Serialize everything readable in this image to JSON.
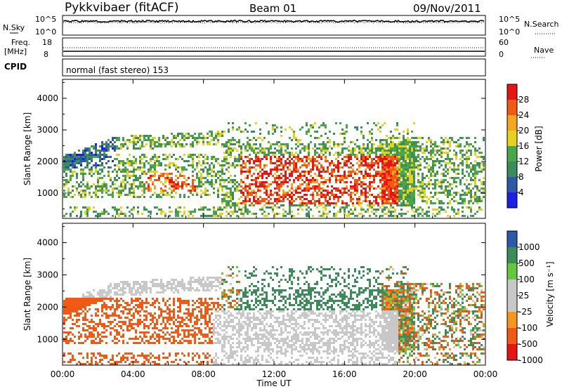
{
  "header": {
    "station": "Pykkvibaer (fitACF)",
    "beam": "Beam 01",
    "date": "09/Nov/2011"
  },
  "nsky": {
    "left_label": "N.Sky",
    "left_ticks": [
      "10^5",
      "10^0"
    ],
    "right_label": "N.Search",
    "right_ticks": [
      "10^5",
      "10^0"
    ]
  },
  "freq": {
    "left_label_1": "Freq.",
    "left_label_2": "[MHz]",
    "left_ticks": [
      "18",
      "8"
    ],
    "right_label": "Nave",
    "right_ticks": [
      "60",
      "0"
    ]
  },
  "cpid": {
    "label": "CPID",
    "mode": "normal (fast stereo) 153"
  },
  "time_axis": {
    "title": "Time UT",
    "ticks": [
      "00:00",
      "04:00",
      "08:00",
      "12:00",
      "16:00",
      "20:00",
      "00:00"
    ]
  },
  "colors": {
    "power_scale": [
      "#1e1ee6",
      "#2c5aa8",
      "#3c8c5a",
      "#4aa64a",
      "#e6d21e",
      "#f5a51e",
      "#f05a14",
      "#e61414"
    ],
    "velocity_scale": [
      "#e61414",
      "#f05a14",
      "#f5961e",
      "#c8c8c8",
      "#c8c8c8",
      "#64c83c",
      "#3c8c5a",
      "#2c5aa8"
    ]
  },
  "chart_data": [
    {
      "type": "heatmap",
      "name_hint": "power",
      "ylabel": "Slant Range [km]",
      "yticks": [
        "1000",
        "2000",
        "3000",
        "4000"
      ],
      "ylim": [
        200,
        4600
      ],
      "xlim": [
        0,
        24
      ],
      "colorbar_label": "Power [dB]",
      "colorbar_ticks": [
        "4",
        "8",
        "12",
        "16",
        "20",
        "24",
        "28"
      ],
      "value_range": [
        0,
        30
      ]
    },
    {
      "type": "heatmap",
      "name_hint": "velocity",
      "ylabel": "Slant Range [km]",
      "yticks": [
        "1000",
        "2000",
        "3000",
        "4000"
      ],
      "ylim": [
        200,
        4600
      ],
      "xlim": [
        0,
        24
      ],
      "colorbar_label": "Velocity [m s⁻¹]",
      "colorbar_ticks": [
        "1000",
        "500",
        "100",
        "25",
        "-25",
        "-100",
        "-500",
        "-1000"
      ],
      "value_range": [
        -1000,
        1000
      ]
    }
  ]
}
